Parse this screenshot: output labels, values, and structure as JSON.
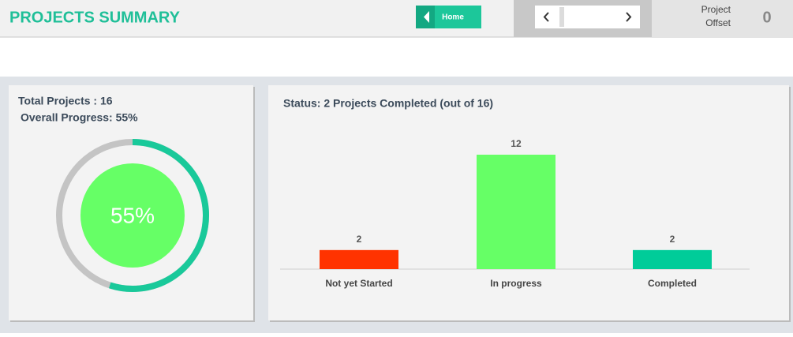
{
  "header": {
    "title": "PROJECTS SUMMARY",
    "home_button": "Home",
    "offset_label": "Project Offset",
    "offset_value": 0
  },
  "chart_data": [
    {
      "type": "donut",
      "title": "Total Projects : 16",
      "subtitle": "Overall Progress: 55%",
      "values": [
        55
      ],
      "value_labels": [
        "55%"
      ],
      "color": "#19c99a",
      "track_color": "#c4c4c4",
      "center_color": "#66ff66"
    },
    {
      "type": "bar",
      "title": "Status: 2 Projects Completed (out of  16)",
      "categories": [
        "Not yet Started",
        "In progress",
        "Completed"
      ],
      "values": [
        2,
        12,
        2
      ],
      "colors": [
        "#ff3300",
        "#66ff66",
        "#00cc99"
      ]
    }
  ]
}
